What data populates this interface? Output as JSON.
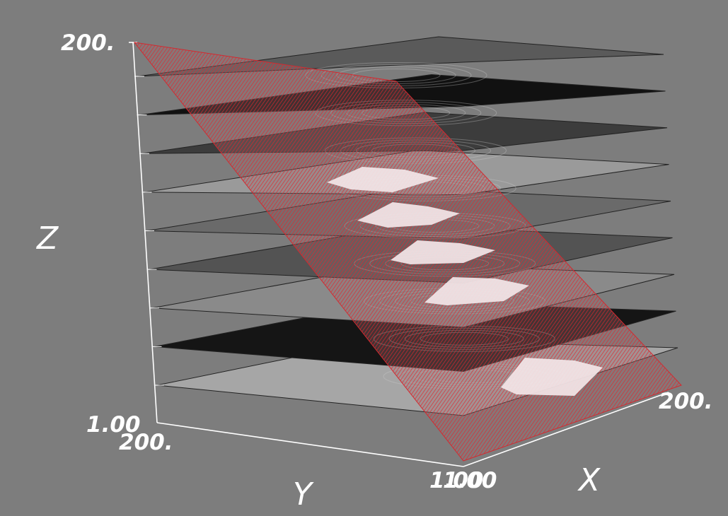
{
  "view": {
    "background": "#7d7d7d",
    "axis_color": "#ffffff",
    "label_color": "#ffffff",
    "plane_color": "#c8242a"
  },
  "axes": {
    "z": {
      "title": "Z",
      "max_label": "200.",
      "min_label": "1.00"
    },
    "y": {
      "title": "Y",
      "max_label": "200.",
      "min_label": "1.00"
    },
    "x": {
      "title": "X",
      "max_label": "200.",
      "min_label": "1.00"
    }
  },
  "slices": [
    {
      "shade": "#a6a6a6"
    },
    {
      "shade": "#151515"
    },
    {
      "shade": "#8a8a8a"
    },
    {
      "shade": "#535353"
    },
    {
      "shade": "#6a6a6a"
    },
    {
      "shade": "#9a9a9a"
    },
    {
      "shade": "#3c3c3c"
    },
    {
      "shade": "#111111"
    },
    {
      "shade": "#5a5a5a"
    }
  ]
}
